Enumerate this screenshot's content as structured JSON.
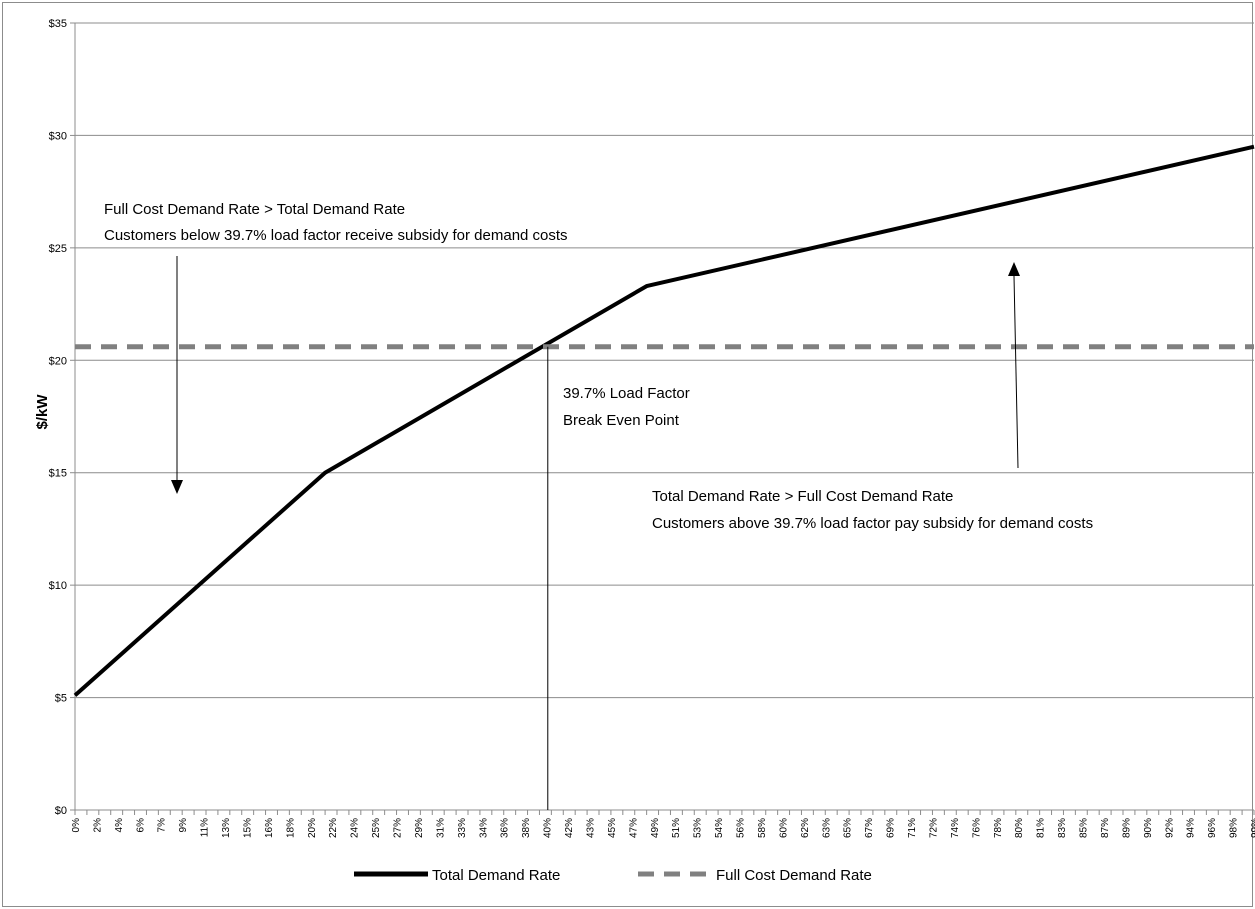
{
  "chart_data": {
    "type": "line",
    "title": "",
    "xlabel": "",
    "ylabel": "$/kW",
    "ylim": [
      0,
      35
    ],
    "y_ticks": [
      0,
      5,
      10,
      15,
      20,
      25,
      30,
      35
    ],
    "y_tick_prefix": "$",
    "x_range_percent": [
      0,
      99
    ],
    "x_tick_labels": [
      "0%",
      "2%",
      "4%",
      "6%",
      "7%",
      "9%",
      "11%",
      "13%",
      "15%",
      "16%",
      "18%",
      "20%",
      "22%",
      "24%",
      "25%",
      "27%",
      "29%",
      "31%",
      "33%",
      "34%",
      "36%",
      "38%",
      "40%",
      "42%",
      "43%",
      "45%",
      "47%",
      "49%",
      "51%",
      "53%",
      "54%",
      "56%",
      "58%",
      "60%",
      "62%",
      "63%",
      "65%",
      "67%",
      "69%",
      "71%",
      "72%",
      "74%",
      "76%",
      "78%",
      "80%",
      "81%",
      "83%",
      "85%",
      "87%",
      "89%",
      "90%",
      "92%",
      "94%",
      "96%",
      "98%",
      "99%"
    ],
    "grid": "horizontal",
    "legend_position": "bottom",
    "series": [
      {
        "name": "Total Demand Rate",
        "color": "#000000",
        "style": "solid",
        "x": [
          0,
          21,
          48,
          99
        ],
        "y": [
          5.1,
          15.0,
          23.3,
          29.5
        ]
      },
      {
        "name": "Full Cost Demand Rate",
        "color": "#808080",
        "style": "dashed",
        "x": [
          0,
          99
        ],
        "y": [
          20.6,
          20.6
        ]
      }
    ],
    "annotations": {
      "left_lines": [
        "Full Cost Demand Rate > Total Demand Rate",
        "Customers below 39.7% load factor receive subsidy for demand costs"
      ],
      "break_even_lines": [
        "39.7% Load Factor",
        "Break Even Point"
      ],
      "right_lines": [
        "Total Demand Rate > Full Cost Demand Rate",
        "Customers above 39.7% load factor pay subsidy for demand costs"
      ],
      "break_even_x": 39.7
    }
  }
}
